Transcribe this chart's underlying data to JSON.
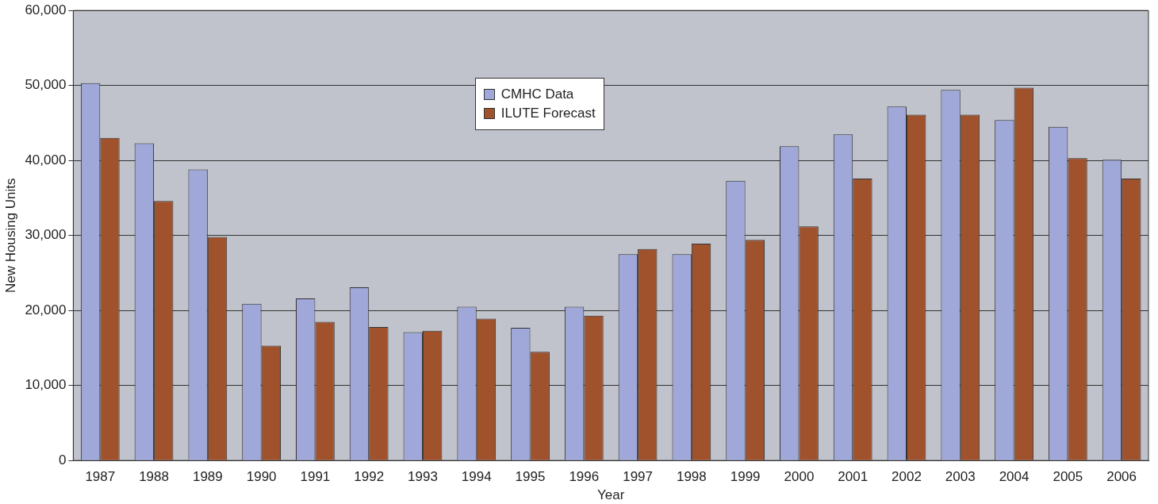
{
  "chart_data": {
    "type": "bar",
    "xlabel": "Year",
    "ylabel": "New Housing Units",
    "categories": [
      "1987",
      "1988",
      "1989",
      "1990",
      "1991",
      "1992",
      "1993",
      "1994",
      "1995",
      "1996",
      "1997",
      "1998",
      "1999",
      "2000",
      "2001",
      "2002",
      "2003",
      "2004",
      "2005",
      "2006"
    ],
    "series": [
      {
        "name": "CMHC Data",
        "color": "#9fa8d8",
        "values": [
          50300,
          42300,
          38800,
          20900,
          21600,
          23100,
          17100,
          20500,
          17700,
          20500,
          27500,
          27500,
          37300,
          41900,
          43500,
          47200,
          49400,
          45400,
          44500,
          40100
        ]
      },
      {
        "name": "ILUTE Forecast",
        "color": "#a0522d",
        "values": [
          43000,
          34600,
          29800,
          15300,
          18500,
          17800,
          17300,
          18900,
          14500,
          19300,
          28200,
          28900,
          29400,
          31200,
          37600,
          46100,
          46100,
          49700,
          40300,
          37600
        ]
      }
    ],
    "ylim": [
      0,
      60000
    ],
    "yticks": [
      0,
      {
        "value": 10000,
        "label": "10,000"
      },
      {
        "value": 20000,
        "label": "20,000"
      },
      {
        "value": 30000,
        "label": "30,000"
      },
      {
        "value": 40000,
        "label": "40,000"
      },
      {
        "value": 50000,
        "label": "50,000"
      },
      {
        "value": 60000,
        "label": "60,000"
      }
    ],
    "grid": "y",
    "legend": "top"
  }
}
